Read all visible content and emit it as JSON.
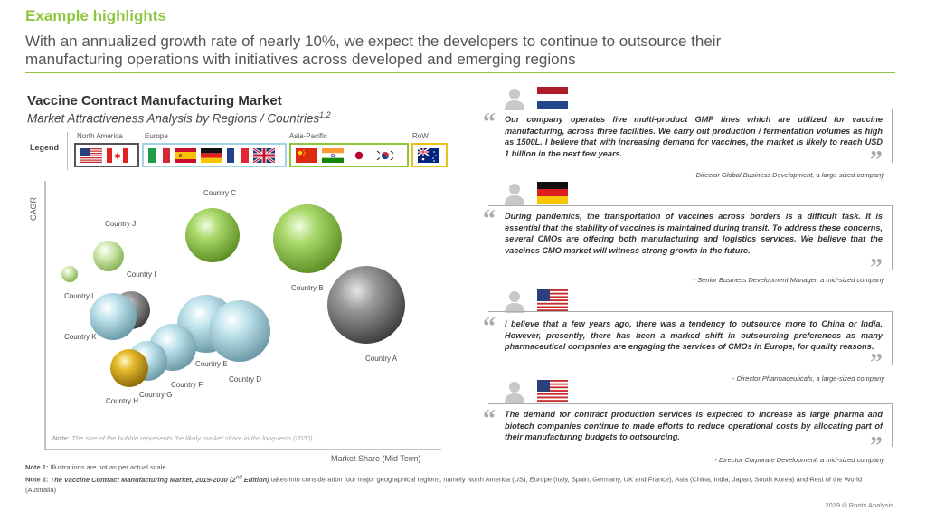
{
  "header": {
    "kicker": "Example highlights",
    "headline_line1": "With an annualized growth rate of nearly 10%, we expect the developers to continue to outsource their",
    "headline_line2": "manufacturing operations with initiatives across developed and emerging regions"
  },
  "chart": {
    "title": "Vaccine Contract Manufacturing Market",
    "subtitle": "Market Attractiveness Analysis by Regions / Countries",
    "subtitle_sup": "1,2",
    "legend_label": "Legend",
    "regions": [
      {
        "name": "North America",
        "color": "#555555",
        "flags": [
          "usa",
          "canada"
        ]
      },
      {
        "name": "Europe",
        "color": "#9fd4e0",
        "flags": [
          "italy",
          "spain",
          "germany",
          "france",
          "uk"
        ]
      },
      {
        "name": "Asia-Pacific",
        "color": "#8dc63f",
        "flags": [
          "china",
          "india",
          "japan",
          "south-korea"
        ]
      },
      {
        "name": "RoW",
        "color": "#e8c21a",
        "flags": [
          "australia"
        ]
      }
    ],
    "y_axis_label": "CAGR",
    "x_axis_label": "Market Share (Mid Term)",
    "note_bold": "Note:",
    "note_text": " The size of the bubble represents the likely market share in the long-term (2030)",
    "countries": {
      "c": "Country C",
      "j": "Country J",
      "i": "Country I",
      "l": "Country L",
      "b": "Country B",
      "k": "Country K",
      "a": "Country A",
      "e": "Country E",
      "d": "Country D",
      "f": "Country F",
      "g": "Country G",
      "h": "Country H"
    }
  },
  "quotes": [
    {
      "text": "Our company operates five multi-product GMP lines which are utilized for vaccine manufacturing, across three facilities. We carry out production / fermentation volumes as high as 1500L. I believe that with increasing demand for vaccines, the market is likely to reach USD 1 billion in the next few years.",
      "attribution": "- Director Global Business Development, a large-sized company",
      "flag": "netherlands"
    },
    {
      "text": "During pandemics, the transportation of vaccines across borders is a difficult task. It is essential that the stability of vaccines is maintained during transit. To address these concerns, several CMOs are offering both manufacturing and logistics services. We believe that the vaccines CMO market will witness strong growth in the future.",
      "attribution": "- Senior Business Development Manager, a mid-sized company",
      "flag": "germany"
    },
    {
      "text": "I believe that a few years ago, there was a tendency to outsource more to China or India. However, presently, there has been a marked shift in outsourcing preferences as many pharmaceutical companies are engaging the services of CMOs in Europe, for quality reasons.",
      "attribution": "- Director Pharmaceuticals, a large-sized company",
      "flag": "usa"
    },
    {
      "text": "The demand for contract production services is expected to increase as large pharma and biotech companies continue to made efforts to reduce operational costs by allocating part of their manufacturing budgets to outsourcing.",
      "attribution": "- Director Corporate Development, a mid-sized company",
      "flag": "usa"
    }
  ],
  "footer": {
    "note1_label": "Note 1:",
    "note1_text": " Illustrations are not as per actual scale",
    "note2_label": "Note 2:",
    "note2_italic": " The Vaccine Contract Manufacturing Market, 2019-2030 (2",
    "note2_sup": "nd",
    "note2_italic_end": " Edition)",
    "note2_text": " takes into consideration four major geographical regions, namely North America (US), Europe (Italy, Spain, Germany, UK and France), Asia (China, India, Japan, South Korea) and Rest of the World (Australia)",
    "copyright": "2019 © Roots Analysis"
  }
}
